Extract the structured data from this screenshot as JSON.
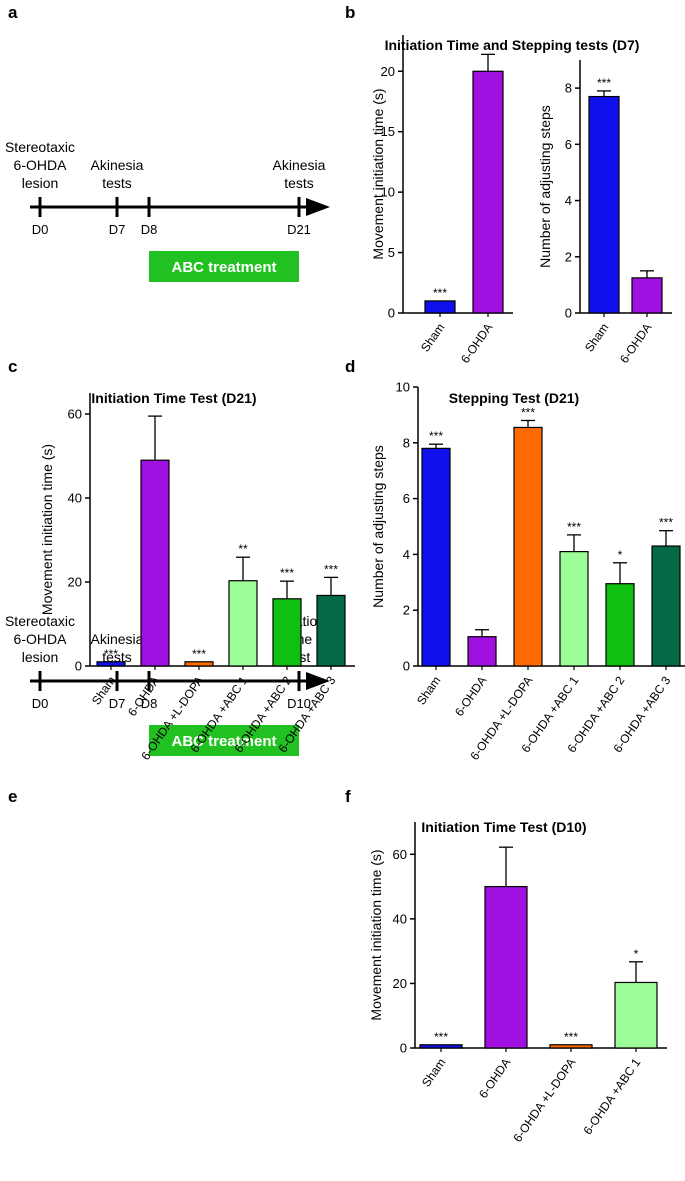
{
  "panels": {
    "a": "a",
    "b": "b",
    "c": "c",
    "d": "d",
    "e": "e",
    "f": "f"
  },
  "timelines": [
    {
      "id": "a",
      "events": [
        {
          "day": "D0",
          "lines": [
            "Stereotaxic",
            "6-OHDA",
            "lesion"
          ]
        },
        {
          "day": "D7",
          "lines": [
            "Akinesia",
            "tests"
          ]
        },
        {
          "day": "D8",
          "lines": []
        },
        {
          "day": "D21",
          "lines": [
            "Akinesia",
            "tests"
          ]
        }
      ],
      "treatment": "ABC treatment"
    },
    {
      "id": "e",
      "events": [
        {
          "day": "D0",
          "lines": [
            "Stereotaxic",
            "6-OHDA",
            "lesion"
          ]
        },
        {
          "day": "D7",
          "lines": [
            "Akinesia",
            "tests"
          ]
        },
        {
          "day": "D8",
          "lines": []
        },
        {
          "day": "D10",
          "lines": [
            "Initiation",
            "time",
            "test"
          ]
        }
      ],
      "treatment": "ABC treatment"
    }
  ],
  "colors": {
    "sham": "#1010ee",
    "ohda": "#a010e0",
    "ldopa": "#ff6a00",
    "abc1": "#9dfd98",
    "abc2": "#10c010",
    "abc3": "#046a45",
    "treatment": "#22c122"
  },
  "chart_data": [
    {
      "id": "b",
      "type": "bar",
      "title": "Initiation Time and Stepping tests (D7)",
      "ylabel": "Movement initiation time (s)",
      "ylim": [
        0,
        23
      ],
      "yticks": [
        0,
        5,
        10,
        15,
        20
      ],
      "categories": [
        "Sham",
        "6-OHDA"
      ],
      "values": [
        1.0,
        20.0
      ],
      "errors": [
        0.0,
        1.4
      ],
      "significance": [
        "***",
        ""
      ],
      "colors": [
        "sham",
        "ohda"
      ]
    },
    {
      "id": "b2",
      "type": "bar",
      "title": "",
      "ylabel": "Number of adjusting steps",
      "ylim": [
        0,
        9
      ],
      "yticks": [
        0,
        2,
        4,
        6,
        8
      ],
      "categories": [
        "Sham",
        "6-OHDA"
      ],
      "values": [
        7.7,
        1.25
      ],
      "errors": [
        0.2,
        0.25
      ],
      "significance": [
        "***",
        ""
      ],
      "colors": [
        "sham",
        "ohda"
      ]
    },
    {
      "id": "c",
      "type": "bar",
      "title": "Initiation Time Test (D21)",
      "ylabel": "Movement initiation time (s)",
      "ylim": [
        0,
        65
      ],
      "yticks": [
        0,
        20,
        40,
        60
      ],
      "categories": [
        "Sham",
        "6-OHDA",
        "6-OHDA +L-DOPA",
        "6-OHDA +ABC 1",
        "6-OHDA +ABC 2",
        "6-OHDA +ABC 3"
      ],
      "values": [
        1.0,
        49.0,
        1.0,
        20.3,
        16.0,
        16.8
      ],
      "errors": [
        0.0,
        10.5,
        0.0,
        5.6,
        4.2,
        4.3
      ],
      "significance": [
        "***",
        "",
        "***",
        "**",
        "***",
        "***"
      ],
      "colors": [
        "sham",
        "ohda",
        "ldopa",
        "abc1",
        "abc2",
        "abc3"
      ]
    },
    {
      "id": "d",
      "type": "bar",
      "title": "Stepping Test (D21)",
      "ylabel": "Number of adjusting steps",
      "ylim": [
        0,
        10
      ],
      "yticks": [
        0,
        2,
        4,
        6,
        8,
        10
      ],
      "categories": [
        "Sham",
        "6-OHDA",
        "6-OHDA +L-DOPA",
        "6-OHDA +ABC 1",
        "6-OHDA +ABC 2",
        "6-OHDA +ABC 3"
      ],
      "values": [
        7.8,
        1.05,
        8.55,
        4.1,
        2.95,
        4.3
      ],
      "errors": [
        0.15,
        0.25,
        0.25,
        0.6,
        0.75,
        0.55
      ],
      "significance": [
        "***",
        "",
        "***",
        "***",
        "*",
        "***"
      ],
      "colors": [
        "sham",
        "ohda",
        "ldopa",
        "abc1",
        "abc2",
        "abc3"
      ]
    },
    {
      "id": "f",
      "type": "bar",
      "title": "Initiation Time Test (D10)",
      "ylabel": "Movement initiation time (s)",
      "ylim": [
        0,
        70
      ],
      "yticks": [
        0,
        20,
        40,
        60
      ],
      "categories": [
        "Sham",
        "6-OHDA",
        "6-OHDA +L-DOPA",
        "6-OHDA +ABC 1"
      ],
      "values": [
        1.0,
        50.0,
        1.0,
        20.3
      ],
      "errors": [
        0.0,
        12.2,
        0.0,
        6.4
      ],
      "significance": [
        "***",
        "",
        "***",
        "*"
      ],
      "colors": [
        "sham",
        "ohda",
        "ldopa",
        "abc1"
      ]
    }
  ]
}
